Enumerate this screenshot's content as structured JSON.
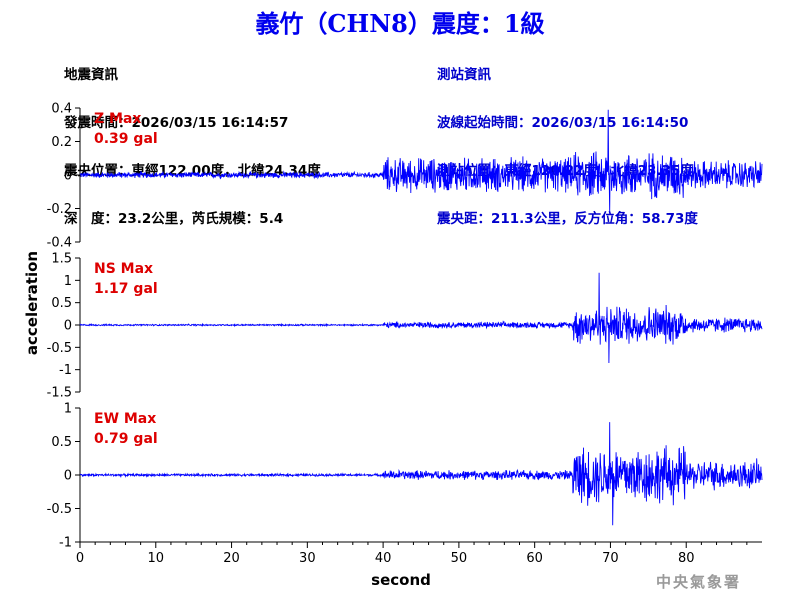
{
  "title": "義竹（CHN8）震度：1級",
  "earthquake_info": {
    "heading": "地震資訊",
    "origin_time": "發震時間：2026/03/15 16:14:57",
    "epicenter": "震央位置：東經122.00度，北緯24.34度",
    "depth_magnitude": "深　度：23.2公里，芮氏規模：5.4"
  },
  "station_info": {
    "heading": "測站資訊",
    "wave_start": "波線起始時間：2026/03/15 16:14:50",
    "location": "測站位置：東經120.22度，北緯23.35度",
    "distance": "震央距：211.3公里，反方位角：58.73度"
  },
  "agency": "中央氣象署",
  "colors": {
    "title": "#0000ee",
    "trace": "#0000ff",
    "max_label": "#dd0000",
    "station_info": "#0000cc"
  },
  "chart_data": [
    {
      "type": "line",
      "component": "Z",
      "label": "Z Max",
      "max_value": "0.39 gal",
      "ylim": [
        -0.4,
        0.4
      ],
      "yticks": [
        -0.4,
        -0.2,
        0,
        0.2,
        0.4
      ],
      "ytick_labels": [
        "-0.4",
        "-0.2",
        "0",
        "0.2",
        "0.4"
      ],
      "segments": [
        {
          "x": [
            0,
            40
          ],
          "amp": 0.02
        },
        {
          "x": [
            40,
            65
          ],
          "amp": 0.12
        },
        {
          "x": [
            65,
            80
          ],
          "amp": 0.16
        },
        {
          "x": [
            80,
            90
          ],
          "amp": 0.1
        }
      ],
      "peaks": [
        {
          "x": 69.7,
          "y": 0.39
        },
        {
          "x": 69.9,
          "y": -0.22
        }
      ]
    },
    {
      "type": "line",
      "component": "NS",
      "label": "NS Max",
      "max_value": "1.17 gal",
      "ylim": [
        -1.5,
        1.5
      ],
      "yticks": [
        -1.5,
        -1,
        -0.5,
        0,
        0.5,
        1,
        1.5
      ],
      "ytick_labels": [
        "-1.5",
        "-1",
        "-0.5",
        "0",
        "0.5",
        "1",
        "1.5"
      ],
      "segments": [
        {
          "x": [
            0,
            40
          ],
          "amp": 0.02
        },
        {
          "x": [
            40,
            65
          ],
          "amp": 0.08
        },
        {
          "x": [
            65,
            80
          ],
          "amp": 0.5
        },
        {
          "x": [
            80,
            90
          ],
          "amp": 0.2
        }
      ],
      "peaks": [
        {
          "x": 68.5,
          "y": 1.17
        },
        {
          "x": 69.8,
          "y": -0.85
        }
      ]
    },
    {
      "type": "line",
      "component": "EW",
      "label": "EW Max",
      "max_value": "0.79 gal",
      "ylim": [
        -1,
        1
      ],
      "yticks": [
        -1,
        -0.5,
        0,
        0.5,
        1
      ],
      "ytick_labels": [
        "-1",
        "-0.5",
        "0",
        "0.5",
        "1"
      ],
      "segments": [
        {
          "x": [
            0,
            40
          ],
          "amp": 0.02
        },
        {
          "x": [
            40,
            65
          ],
          "amp": 0.08
        },
        {
          "x": [
            65,
            80
          ],
          "amp": 0.5
        },
        {
          "x": [
            80,
            90
          ],
          "amp": 0.25
        }
      ],
      "peaks": [
        {
          "x": 69.9,
          "y": 0.79
        },
        {
          "x": 70.3,
          "y": -0.75
        }
      ]
    }
  ],
  "xaxis": {
    "label": "second",
    "xlim": [
      0,
      90
    ],
    "ticks": [
      0,
      10,
      20,
      30,
      40,
      50,
      60,
      70,
      80
    ],
    "tick_labels": [
      "0",
      "10",
      "20",
      "30",
      "40",
      "50",
      "60",
      "70",
      "80"
    ]
  },
  "yaxis": {
    "label": "acceleration"
  }
}
